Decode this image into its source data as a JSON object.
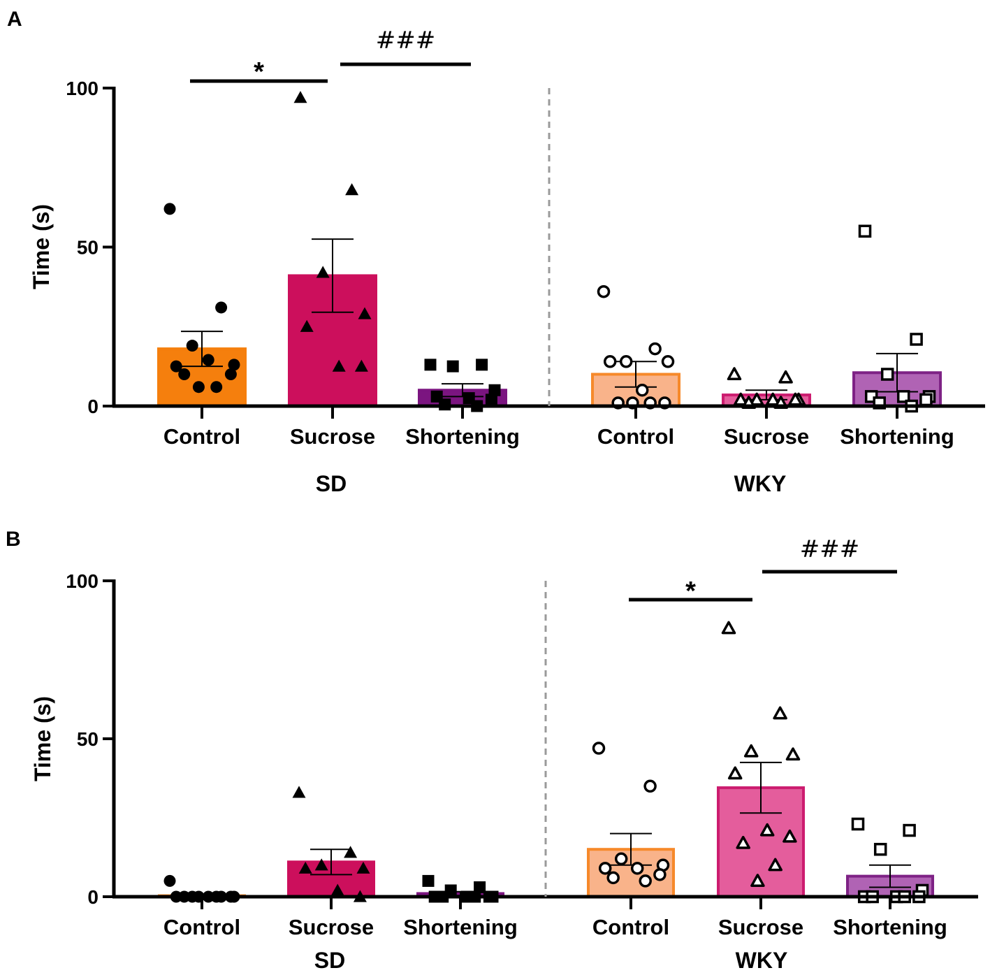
{
  "chart_data": [
    {
      "type": "bar",
      "panel_label": "A",
      "ylabel": "Time (s)",
      "ylim": [
        0,
        100
      ],
      "yticks": [
        "0",
        "50",
        "100"
      ],
      "groups": [
        {
          "name": "SD",
          "bars": [
            {
              "category": "Control",
              "mean": 18,
              "sem": 5.5,
              "color": "#F57F0D",
              "edge": "#F57F0D",
              "marker": "circle",
              "filled": true,
              "points": [
                62,
                31,
                19,
                13,
                12.5,
                14.5,
                10,
                10,
                6,
                6
              ]
            },
            {
              "category": "Sucrose",
              "mean": 41,
              "sem": 11.5,
              "color": "#CC0F5C",
              "edge": "#CC0F5C",
              "marker": "triangle",
              "filled": true,
              "points": [
                97,
                68,
                42,
                29,
                25,
                12.5,
                12.5
              ]
            },
            {
              "category": "Shortening",
              "mean": 5,
              "sem": 2,
              "color": "#7B1580",
              "edge": "#7B1580",
              "marker": "square",
              "filled": true,
              "points": [
                13,
                13,
                12.5,
                5,
                3,
                2.5,
                2,
                0.5,
                0
              ]
            }
          ]
        },
        {
          "name": "WKY",
          "bars": [
            {
              "category": "Control",
              "mean": 10,
              "sem": 4,
              "color": "#F9B38A",
              "edge": "#F6892A",
              "marker": "circle",
              "filled": false,
              "points": [
                36,
                18,
                14,
                14,
                14,
                5,
                1,
                1,
                1,
                1
              ]
            },
            {
              "category": "Sucrose",
              "mean": 3.5,
              "sem": 1.5,
              "color": "#E45D9C",
              "edge": "#CC1C6F",
              "marker": "triangle",
              "filled": false,
              "points": [
                10,
                9,
                2,
                2,
                2,
                2,
                2,
                1,
                1
              ]
            },
            {
              "category": "Shortening",
              "mean": 10.5,
              "sem": 6,
              "color": "#B063B4",
              "edge": "#7E2285",
              "marker": "square",
              "filled": false,
              "points": [
                55,
                21,
                10,
                3,
                3,
                3,
                2,
                1,
                0
              ]
            }
          ]
        }
      ],
      "significance": [
        {
          "label": "*",
          "from": "SD Control",
          "to": "SD Sucrose"
        },
        {
          "label": "###",
          "from": "SD Sucrose",
          "to": "SD Shortening"
        }
      ]
    },
    {
      "type": "bar",
      "panel_label": "B",
      "ylabel": "Time (s)",
      "ylim": [
        0,
        100
      ],
      "yticks": [
        "0",
        "50",
        "100"
      ],
      "groups": [
        {
          "name": "SD",
          "bars": [
            {
              "category": "Control",
              "mean": 0.3,
              "sem": 0.5,
              "color": "#F57F0D",
              "edge": "#F57F0D",
              "marker": "circle",
              "filled": true,
              "points": [
                5,
                0,
                0,
                0,
                0,
                0,
                0,
                0,
                0,
                0
              ]
            },
            {
              "category": "Sucrose",
              "mean": 11,
              "sem": 4,
              "color": "#CC0F5C",
              "edge": "#CC0F5C",
              "marker": "triangle",
              "filled": true,
              "points": [
                33,
                14,
                10,
                9,
                9,
                2,
                0
              ]
            },
            {
              "category": "Shortening",
              "mean": 1,
              "sem": 0.6,
              "color": "#7B1580",
              "edge": "#7B1580",
              "marker": "square",
              "filled": true,
              "points": [
                5,
                3,
                2,
                0,
                0,
                0,
                0,
                0,
                0
              ]
            }
          ]
        },
        {
          "name": "WKY",
          "bars": [
            {
              "category": "Control",
              "mean": 15,
              "sem": 5,
              "color": "#F9B38A",
              "edge": "#F6892A",
              "marker": "circle",
              "filled": false,
              "points": [
                47,
                35,
                12,
                10,
                9,
                9,
                7,
                6,
                5
              ]
            },
            {
              "category": "Sucrose",
              "mean": 34.5,
              "sem": 8,
              "color": "#E45D9C",
              "edge": "#CC1C6F",
              "marker": "triangle",
              "filled": false,
              "points": [
                85,
                58,
                46,
                45,
                39,
                21,
                19,
                17,
                10,
                5
              ]
            },
            {
              "category": "Shortening",
              "mean": 6.5,
              "sem": 3.5,
              "color": "#B063B4",
              "edge": "#7E2285",
              "marker": "square",
              "filled": false,
              "points": [
                23,
                21,
                15,
                2,
                0,
                0,
                0,
                0,
                0
              ]
            }
          ]
        }
      ],
      "significance": [
        {
          "label": "*",
          "from": "WKY Control",
          "to": "WKY Sucrose"
        },
        {
          "label": "###",
          "from": "WKY Sucrose",
          "to": "WKY Shortening"
        }
      ]
    }
  ]
}
